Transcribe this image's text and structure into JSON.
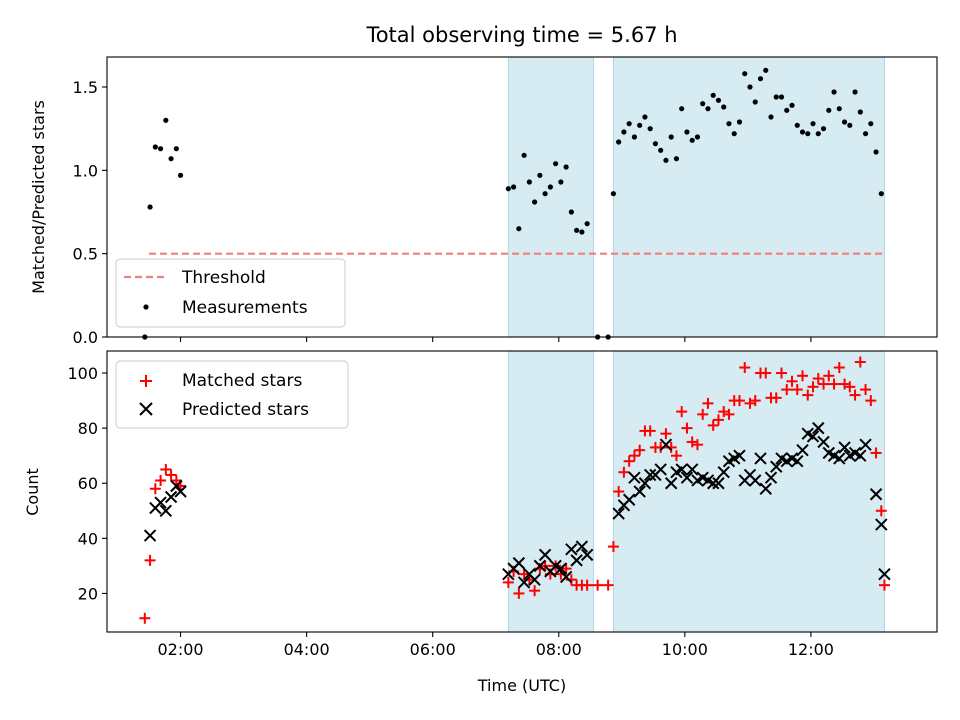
{
  "chart_data": [
    {
      "type": "scatter",
      "title": "Total observing time = 5.67 h",
      "ylabel": "Matched/Predicted stars",
      "xlabel": "",
      "x_axis": "time",
      "xlim": [
        "00:50",
        "14:00"
      ],
      "ylim": [
        0,
        1.68
      ],
      "yticks": [
        0.0,
        0.5,
        1.0,
        1.5
      ],
      "ytick_labels": [
        "0.0",
        "0.5",
        "1.0",
        "1.5"
      ],
      "xtick_times": [
        "02:00",
        "04:00",
        "06:00",
        "08:00",
        "10:00",
        "12:00"
      ],
      "shaded_intervals": [
        [
          "07:12",
          "08:33"
        ],
        [
          "08:52",
          "13:10"
        ]
      ],
      "shade_color": "#add8e6",
      "threshold": {
        "name": "Threshold",
        "value": 0.5,
        "x_start": "01:30",
        "x_end": "13:10",
        "color": "#f08080",
        "style": "dashed"
      },
      "legend": {
        "placement": "lower-left",
        "entries": [
          "Threshold",
          "Measurements"
        ]
      },
      "series": [
        {
          "name": "Measurements",
          "marker": "dot",
          "color": "#000000",
          "points": [
            [
              "01:26",
              0.0
            ],
            [
              "01:31",
              0.78
            ],
            [
              "01:36",
              1.14
            ],
            [
              "01:41",
              1.13
            ],
            [
              "01:46",
              1.3
            ],
            [
              "01:51",
              1.07
            ],
            [
              "01:56",
              1.13
            ],
            [
              "02:00",
              0.97
            ],
            [
              "07:12",
              0.89
            ],
            [
              "07:17",
              0.9
            ],
            [
              "07:22",
              0.65
            ],
            [
              "07:27",
              1.09
            ],
            [
              "07:32",
              0.93
            ],
            [
              "07:37",
              0.81
            ],
            [
              "07:42",
              0.97
            ],
            [
              "07:47",
              0.86
            ],
            [
              "07:52",
              0.9
            ],
            [
              "07:57",
              1.04
            ],
            [
              "08:02",
              0.93
            ],
            [
              "08:07",
              1.02
            ],
            [
              "08:12",
              0.75
            ],
            [
              "08:17",
              0.64
            ],
            [
              "08:22",
              0.63
            ],
            [
              "08:27",
              0.68
            ],
            [
              "08:37",
              0.0
            ],
            [
              "08:47",
              0.0
            ],
            [
              "08:52",
              0.86
            ],
            [
              "08:57",
              1.17
            ],
            [
              "09:02",
              1.23
            ],
            [
              "09:07",
              1.28
            ],
            [
              "09:12",
              1.2
            ],
            [
              "09:17",
              1.27
            ],
            [
              "09:22",
              1.32
            ],
            [
              "09:27",
              1.25
            ],
            [
              "09:32",
              1.16
            ],
            [
              "09:37",
              1.12
            ],
            [
              "09:42",
              1.06
            ],
            [
              "09:47",
              1.2
            ],
            [
              "09:52",
              1.07
            ],
            [
              "09:57",
              1.37
            ],
            [
              "10:02",
              1.23
            ],
            [
              "10:07",
              1.18
            ],
            [
              "10:12",
              1.2
            ],
            [
              "10:17",
              1.4
            ],
            [
              "10:22",
              1.37
            ],
            [
              "10:27",
              1.45
            ],
            [
              "10:32",
              1.42
            ],
            [
              "10:37",
              1.38
            ],
            [
              "10:42",
              1.28
            ],
            [
              "10:47",
              1.22
            ],
            [
              "10:52",
              1.29
            ],
            [
              "10:57",
              1.58
            ],
            [
              "11:02",
              1.5
            ],
            [
              "11:07",
              1.41
            ],
            [
              "11:12",
              1.55
            ],
            [
              "11:17",
              1.6
            ],
            [
              "11:22",
              1.32
            ],
            [
              "11:27",
              1.44
            ],
            [
              "11:32",
              1.44
            ],
            [
              "11:37",
              1.36
            ],
            [
              "11:42",
              1.39
            ],
            [
              "11:47",
              1.27
            ],
            [
              "11:52",
              1.23
            ],
            [
              "11:57",
              1.22
            ],
            [
              "12:02",
              1.28
            ],
            [
              "12:07",
              1.22
            ],
            [
              "12:12",
              1.25
            ],
            [
              "12:17",
              1.36
            ],
            [
              "12:22",
              1.47
            ],
            [
              "12:27",
              1.37
            ],
            [
              "12:32",
              1.29
            ],
            [
              "12:37",
              1.27
            ],
            [
              "12:42",
              1.47
            ],
            [
              "12:47",
              1.35
            ],
            [
              "12:52",
              1.22
            ],
            [
              "12:57",
              1.28
            ],
            [
              "13:02",
              1.11
            ],
            [
              "13:07",
              0.86
            ]
          ]
        }
      ]
    },
    {
      "type": "scatter",
      "title": "",
      "ylabel": "Count",
      "xlabel": "Time (UTC)",
      "x_axis": "time",
      "xlim": [
        "00:50",
        "14:00"
      ],
      "ylim": [
        6,
        108
      ],
      "yticks": [
        20,
        40,
        60,
        80,
        100
      ],
      "ytick_labels": [
        "20",
        "40",
        "60",
        "80",
        "100"
      ],
      "xtick_times": [
        "02:00",
        "04:00",
        "06:00",
        "08:00",
        "10:00",
        "12:00"
      ],
      "xtick_labels": [
        "02:00",
        "04:00",
        "06:00",
        "08:00",
        "10:00",
        "12:00"
      ],
      "shaded_intervals": [
        [
          "07:12",
          "08:33"
        ],
        [
          "08:52",
          "13:10"
        ]
      ],
      "shade_color": "#add8e6",
      "legend": {
        "placement": "upper-left",
        "entries": [
          "Matched stars",
          "Predicted stars"
        ]
      },
      "series": [
        {
          "name": "Matched stars",
          "marker": "plus",
          "color": "#ff0000",
          "points": [
            [
              "01:26",
              11
            ],
            [
              "01:31",
              32
            ],
            [
              "01:36",
              58
            ],
            [
              "01:41",
              61
            ],
            [
              "01:46",
              65
            ],
            [
              "01:51",
              63
            ],
            [
              "01:56",
              61
            ],
            [
              "02:00",
              59
            ],
            [
              "07:12",
              24
            ],
            [
              "07:17",
              28
            ],
            [
              "07:22",
              20
            ],
            [
              "07:27",
              27
            ],
            [
              "07:32",
              25
            ],
            [
              "07:37",
              21
            ],
            [
              "07:42",
              29
            ],
            [
              "07:47",
              30
            ],
            [
              "07:52",
              27
            ],
            [
              "07:57",
              30
            ],
            [
              "08:02",
              27
            ],
            [
              "08:07",
              29
            ],
            [
              "08:12",
              25
            ],
            [
              "08:17",
              23
            ],
            [
              "08:22",
              23
            ],
            [
              "08:27",
              23
            ],
            [
              "08:37",
              23
            ],
            [
              "08:47",
              23
            ],
            [
              "08:52",
              37
            ],
            [
              "08:57",
              57
            ],
            [
              "09:02",
              64
            ],
            [
              "09:07",
              68
            ],
            [
              "09:12",
              70
            ],
            [
              "09:17",
              72
            ],
            [
              "09:22",
              79
            ],
            [
              "09:27",
              79
            ],
            [
              "09:32",
              73
            ],
            [
              "09:37",
              73
            ],
            [
              "09:42",
              78
            ],
            [
              "09:47",
              73
            ],
            [
              "09:52",
              70
            ],
            [
              "09:57",
              86
            ],
            [
              "10:02",
              80
            ],
            [
              "10:07",
              75
            ],
            [
              "10:12",
              74
            ],
            [
              "10:17",
              85
            ],
            [
              "10:22",
              89
            ],
            [
              "10:27",
              81
            ],
            [
              "10:32",
              83
            ],
            [
              "10:37",
              86
            ],
            [
              "10:42",
              85
            ],
            [
              "10:47",
              90
            ],
            [
              "10:52",
              90
            ],
            [
              "10:57",
              102
            ],
            [
              "11:02",
              89
            ],
            [
              "11:07",
              90
            ],
            [
              "11:12",
              100
            ],
            [
              "11:17",
              100
            ],
            [
              "11:22",
              91
            ],
            [
              "11:27",
              91
            ],
            [
              "11:32",
              100
            ],
            [
              "11:37",
              94
            ],
            [
              "11:42",
              97
            ],
            [
              "11:47",
              94
            ],
            [
              "11:52",
              99
            ],
            [
              "11:57",
              92
            ],
            [
              "12:02",
              95
            ],
            [
              "12:07",
              98
            ],
            [
              "12:12",
              96
            ],
            [
              "12:17",
              99
            ],
            [
              "12:22",
              96
            ],
            [
              "12:27",
              102
            ],
            [
              "12:32",
              96
            ],
            [
              "12:37",
              95
            ],
            [
              "12:42",
              92
            ],
            [
              "12:47",
              104
            ],
            [
              "12:52",
              94
            ],
            [
              "12:57",
              90
            ],
            [
              "13:02",
              71
            ],
            [
              "13:07",
              50
            ],
            [
              "13:10",
              23
            ]
          ]
        },
        {
          "name": "Predicted stars",
          "marker": "x",
          "color": "#000000",
          "points": [
            [
              "01:31",
              41
            ],
            [
              "01:36",
              51
            ],
            [
              "01:41",
              53
            ],
            [
              "01:46",
              50
            ],
            [
              "01:51",
              55
            ],
            [
              "01:56",
              59
            ],
            [
              "02:00",
              57
            ],
            [
              "07:12",
              27
            ],
            [
              "07:17",
              29
            ],
            [
              "07:22",
              31
            ],
            [
              "07:27",
              24
            ],
            [
              "07:32",
              27
            ],
            [
              "07:37",
              25
            ],
            [
              "07:42",
              30
            ],
            [
              "07:47",
              34
            ],
            [
              "07:52",
              28
            ],
            [
              "07:57",
              30
            ],
            [
              "08:02",
              29
            ],
            [
              "08:07",
              26
            ],
            [
              "08:12",
              36
            ],
            [
              "08:17",
              32
            ],
            [
              "08:22",
              37
            ],
            [
              "08:27",
              34
            ],
            [
              "08:57",
              49
            ],
            [
              "09:02",
              52
            ],
            [
              "09:07",
              54
            ],
            [
              "09:12",
              62
            ],
            [
              "09:17",
              57
            ],
            [
              "09:22",
              60
            ],
            [
              "09:27",
              63
            ],
            [
              "09:32",
              63
            ],
            [
              "09:37",
              65
            ],
            [
              "09:42",
              74
            ],
            [
              "09:47",
              60
            ],
            [
              "09:52",
              64
            ],
            [
              "09:57",
              65
            ],
            [
              "10:02",
              62
            ],
            [
              "10:07",
              65
            ],
            [
              "10:12",
              61
            ],
            [
              "10:17",
              62
            ],
            [
              "10:22",
              61
            ],
            [
              "10:27",
              60
            ],
            [
              "10:32",
              60
            ],
            [
              "10:37",
              64
            ],
            [
              "10:42",
              68
            ],
            [
              "10:47",
              69
            ],
            [
              "10:52",
              70
            ],
            [
              "10:57",
              61
            ],
            [
              "11:02",
              63
            ],
            [
              "11:07",
              61
            ],
            [
              "11:12",
              69
            ],
            [
              "11:17",
              58
            ],
            [
              "11:22",
              62
            ],
            [
              "11:27",
              66
            ],
            [
              "11:32",
              69
            ],
            [
              "11:37",
              68
            ],
            [
              "11:42",
              69
            ],
            [
              "11:47",
              68
            ],
            [
              "11:52",
              72
            ],
            [
              "11:57",
              78
            ],
            [
              "12:02",
              77
            ],
            [
              "12:07",
              80
            ],
            [
              "12:12",
              75
            ],
            [
              "12:17",
              71
            ],
            [
              "12:22",
              70
            ],
            [
              "12:27",
              69
            ],
            [
              "12:32",
              73
            ],
            [
              "12:37",
              70
            ],
            [
              "12:42",
              71
            ],
            [
              "12:47",
              70
            ],
            [
              "12:52",
              74
            ],
            [
              "13:02",
              56
            ],
            [
              "13:07",
              45
            ],
            [
              "13:10",
              27
            ]
          ]
        }
      ]
    }
  ]
}
